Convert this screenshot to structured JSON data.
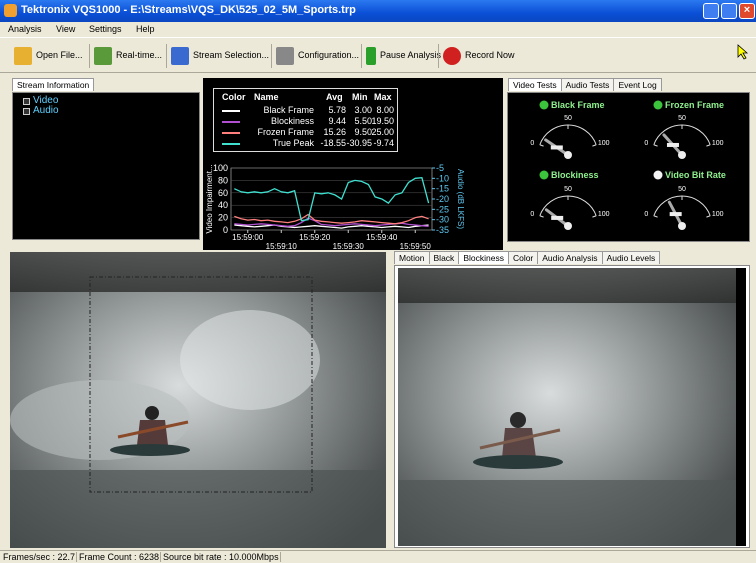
{
  "window": {
    "title": "Tektronix VQS1000 - E:\\Streams\\VQS_DK\\525_02_5M_Sports.trp",
    "menu": [
      "Analysis",
      "View",
      "Settings",
      "Help"
    ]
  },
  "toolbar": [
    "Open File...",
    "Real-time...",
    "Stream Selection...",
    "Configuration...",
    "Pause Analysis",
    "Record Now"
  ],
  "stream_info": {
    "tab": "Stream Information",
    "items": [
      "Video",
      "Audio"
    ]
  },
  "legend_table": {
    "header": [
      "Color",
      "Name",
      "Avg",
      "Min",
      "Max"
    ],
    "stats": [
      [
        "5.78",
        "3.00",
        "8.00"
      ],
      [
        "9.44",
        "5.50",
        "19.50"
      ],
      [
        "15.26",
        "9.50",
        "25.00"
      ],
      [
        "-18.55",
        "-30.95",
        "-9.74"
      ]
    ]
  },
  "chart_data": {
    "type": "line",
    "ylabel": "Video Impairment...",
    "y2label": "Audio (dB LKFS)",
    "x": [
      "15:58:56",
      "15:58:58",
      "15:59:00",
      "15:59:02",
      "15:59:04",
      "15:59:06",
      "15:59:08",
      "15:59:10",
      "15:59:12",
      "15:59:14",
      "15:59:16",
      "15:59:18",
      "15:59:20",
      "15:59:22",
      "15:59:24",
      "15:59:26",
      "15:59:28",
      "15:59:30",
      "15:59:32",
      "15:59:34",
      "15:59:36",
      "15:59:38",
      "15:59:40",
      "15:59:42",
      "15:59:44",
      "15:59:46",
      "15:59:48",
      "15:59:50",
      "15:59:52",
      "15:59:54"
    ],
    "xlim": [
      "15:58:55",
      "15:59:55"
    ],
    "xticks": [
      "15:59:00",
      "15:59:10",
      "15:59:20",
      "15:59:30",
      "15:59:40",
      "15:59:50"
    ],
    "ylim": [
      0,
      100
    ],
    "yticks": [
      0,
      20,
      40,
      60,
      80,
      100
    ],
    "y2lim": [
      -35,
      -5
    ],
    "y2ticks": [
      -35,
      -30,
      -25,
      -20,
      -15,
      -10,
      -5
    ],
    "series": [
      {
        "name": "Black Frame",
        "color": "#ffffff",
        "values": [
          8,
          7,
          6,
          5,
          6,
          7,
          8,
          6,
          5,
          4,
          5,
          6,
          7,
          6,
          5,
          4,
          3,
          5,
          6,
          7,
          6,
          5,
          4,
          5,
          6,
          5,
          4,
          6,
          7,
          8
        ]
      },
      {
        "name": "Blockiness",
        "color": "#b04fd0",
        "values": [
          10,
          9,
          8,
          9,
          10,
          9,
          8,
          7,
          6,
          7,
          12,
          19,
          15,
          9,
          8,
          7,
          8,
          9,
          10,
          9,
          8,
          7,
          8,
          9,
          10,
          11,
          9,
          8,
          7,
          6
        ]
      },
      {
        "name": "Frozen Frame",
        "color": "#ff7f7f",
        "values": [
          22,
          18,
          16,
          17,
          15,
          16,
          14,
          13,
          12,
          14,
          18,
          25,
          16,
          14,
          13,
          12,
          11,
          12,
          13,
          15,
          14,
          13,
          12,
          11,
          10,
          12,
          15,
          20,
          22,
          18
        ]
      },
      {
        "name": "True Peak",
        "color": "#40e0d0",
        "axis": "y2",
        "values": [
          -15,
          -16.5,
          -17,
          -16.5,
          -17,
          -16.5,
          -15,
          -16.5,
          -17,
          -16,
          -30.5,
          -30,
          -17,
          -17.5,
          -17,
          -18,
          -20,
          -12,
          -11,
          -11.5,
          -13,
          -19,
          -20,
          -22,
          -18,
          -17,
          -12,
          -10,
          -9.7,
          -22
        ]
      }
    ]
  },
  "gauges": {
    "tabs": [
      "Video Tests",
      "Audio Tests",
      "Event Log"
    ],
    "ticks": [
      0,
      50,
      100
    ],
    "items": [
      {
        "name": "Black Frame",
        "status_color": "#3cc43c",
        "value": 10
      },
      {
        "name": "Frozen Frame",
        "status_color": "#3cc43c",
        "value": 20
      },
      {
        "name": "Blockiness",
        "status_color": "#3cc43c",
        "value": 12
      },
      {
        "name": "Video Bit Rate",
        "status_color": "#f4f4f4",
        "value": 30
      }
    ]
  },
  "video_tabs": [
    "Motion",
    "Black",
    "Blockiness",
    "Color",
    "Audio Analysis",
    "Audio Levels"
  ],
  "status_bar": [
    "Frames/sec : 22.7",
    "Frame Count : 6238",
    "Source bit rate : 10.000Mbps"
  ]
}
